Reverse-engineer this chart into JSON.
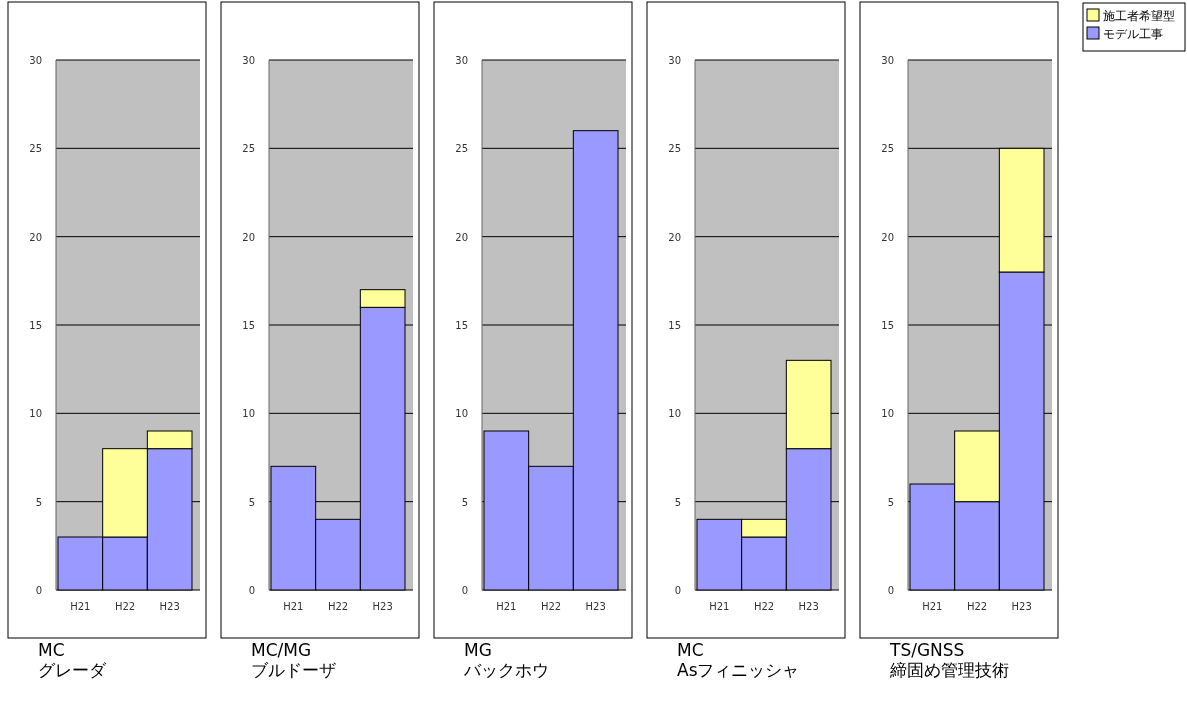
{
  "chart_data": [
    {
      "type": "bar",
      "xlabel": "MC\nグレーダ",
      "categories": [
        "H21",
        "H22",
        "H23"
      ],
      "stacked": true,
      "ylim": [
        0,
        30
      ],
      "yticks": [
        0,
        5,
        10,
        15,
        20,
        25,
        30
      ],
      "grid": "y",
      "series": [
        {
          "color": "#9999ff",
          "values": [
            3,
            3,
            8
          ]
        },
        {
          "color": "#ffff99",
          "values": [
            0,
            5,
            1
          ]
        }
      ]
    },
    {
      "type": "bar",
      "xlabel": "MC/MG\nブルドーザ",
      "categories": [
        "H21",
        "H22",
        "H23"
      ],
      "stacked": true,
      "ylim": [
        0,
        30
      ],
      "yticks": [
        0,
        5,
        10,
        15,
        20,
        25,
        30
      ],
      "grid": "y",
      "series": [
        {
          "color": "#9999ff",
          "values": [
            7,
            4,
            16
          ]
        },
        {
          "color": "#ffff99",
          "values": [
            0,
            0,
            1
          ]
        }
      ]
    },
    {
      "type": "bar",
      "xlabel": "MG\nバックホウ",
      "categories": [
        "H21",
        "H22",
        "H23"
      ],
      "stacked": true,
      "ylim": [
        0,
        30
      ],
      "yticks": [
        0,
        5,
        10,
        15,
        20,
        25,
        30
      ],
      "grid": "y",
      "series": [
        {
          "color": "#9999ff",
          "values": [
            9,
            7,
            26
          ]
        },
        {
          "color": "#ffff99",
          "values": [
            0,
            0,
            0
          ]
        }
      ]
    },
    {
      "type": "bar",
      "xlabel": "MC\nAsフィニッシャ",
      "categories": [
        "H21",
        "H22",
        "H23"
      ],
      "stacked": true,
      "ylim": [
        0,
        30
      ],
      "yticks": [
        0,
        5,
        10,
        15,
        20,
        25,
        30
      ],
      "grid": "y",
      "series": [
        {
          "color": "#9999ff",
          "values": [
            4,
            3,
            8
          ]
        },
        {
          "color": "#ffff99",
          "values": [
            0,
            1,
            5
          ]
        }
      ]
    },
    {
      "type": "bar",
      "xlabel": "TS/GNSS\n締固め管理技術",
      "categories": [
        "H21",
        "H22",
        "H23"
      ],
      "stacked": true,
      "ylim": [
        0,
        30
      ],
      "yticks": [
        0,
        5,
        10,
        15,
        20,
        25,
        30
      ],
      "grid": "y",
      "legend": "top right",
      "series": [
        {
          "name": "モデル工事",
          "color": "#9999ff",
          "values": [
            6,
            5,
            18
          ]
        },
        {
          "name": "施工者希望型",
          "color": "#ffff99",
          "values": [
            0,
            4,
            7
          ]
        }
      ]
    }
  ]
}
